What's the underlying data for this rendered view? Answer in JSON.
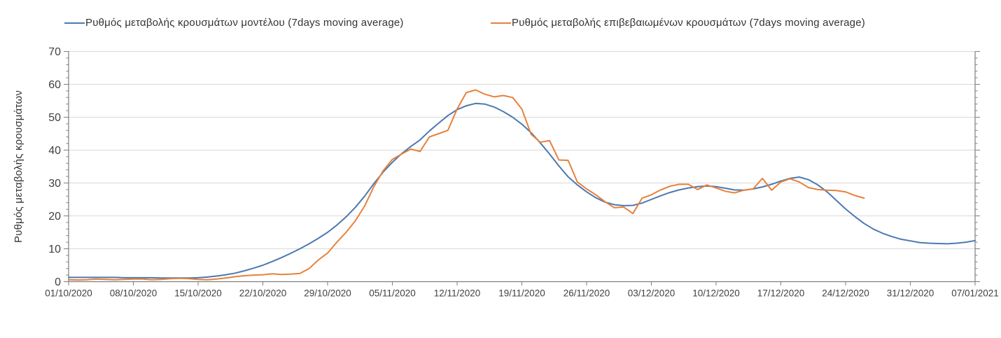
{
  "legend": {
    "model_label": "Ρυθμός μεταβολής κρουσμάτων μοντέλου (7days moving average)",
    "confirmed_label": "Ρυθμός μεταβολής επιβεβαιωμένων κρουσμάτων (7days moving average)"
  },
  "y_axis_title": "Ρυθμός μεταβολής κρουσμάτων",
  "colors": {
    "model_line": "#4c79b0",
    "confirmed_line": "#e7813c",
    "gridline": "#d9d9d9",
    "axis": "#7f7f7f",
    "tick_text": "#404040"
  },
  "chart_data": {
    "type": "line",
    "title": "",
    "xlabel": "",
    "ylabel": "Ρυθμός μεταβολής κρουσμάτων",
    "ylim": [
      0,
      70
    ],
    "y_ticks": [
      0,
      10,
      20,
      30,
      40,
      50,
      60,
      70
    ],
    "y_minor_tick_step": 2,
    "grid": "horizontal",
    "legend_position": "top",
    "x_tick_labels": [
      "01/10/2020",
      "08/10/2020",
      "15/10/2020",
      "22/10/2020",
      "29/10/2020",
      "05/11/2020",
      "12/11/2020",
      "19/11/2020",
      "26/11/2020",
      "03/12/2020",
      "10/12/2020",
      "17/12/2020",
      "24/12/2020",
      "31/12/2020",
      "07/01/2021"
    ],
    "x_tick_interval_days": 7,
    "x_range_days": [
      0,
      98
    ],
    "series": [
      {
        "name": "Ρυθμός μεταβολής κρουσμάτων μοντέλου (7days moving average)",
        "key": "model",
        "color": "#4c79b0",
        "start_day": 0,
        "values": [
          1.3,
          1.3,
          1.3,
          1.3,
          1.3,
          1.3,
          1.2,
          1.2,
          1.2,
          1.2,
          1.1,
          1.1,
          1.1,
          1.1,
          1.2,
          1.4,
          1.7,
          2.1,
          2.6,
          3.3,
          4.1,
          5.0,
          6.1,
          7.3,
          8.6,
          10.0,
          11.5,
          13.2,
          15.0,
          17.2,
          19.7,
          22.6,
          26.0,
          29.8,
          33.3,
          36.3,
          38.9,
          41.1,
          43.1,
          45.8,
          48.2,
          50.5,
          52.3,
          53.5,
          54.2,
          54.0,
          53.1,
          51.7,
          50.0,
          47.9,
          45.3,
          42.2,
          38.8,
          35.2,
          31.9,
          29.4,
          27.3,
          25.5,
          24.2,
          23.4,
          23.1,
          23.2,
          23.9,
          25.0,
          26.1,
          27.1,
          27.9,
          28.5,
          28.9,
          29.1,
          28.9,
          28.4,
          27.9,
          27.8,
          28.2,
          28.8,
          29.6,
          30.6,
          31.4,
          31.8,
          31.0,
          29.4,
          27.3,
          24.7,
          22.1,
          19.8,
          17.7,
          16.0,
          14.7,
          13.7,
          12.9,
          12.4,
          11.9,
          11.7,
          11.6,
          11.5,
          11.7,
          12.0,
          12.5
        ]
      },
      {
        "name": "Ρυθμός μεταβολής επιβεβαιωμένων κρουσμάτων (7days moving average)",
        "key": "confirmed",
        "color": "#e7813c",
        "start_day": 0,
        "values": [
          0.6,
          0.5,
          0.6,
          0.8,
          0.7,
          0.6,
          0.7,
          0.8,
          0.8,
          0.6,
          0.7,
          0.9,
          1.0,
          0.9,
          0.7,
          0.6,
          0.8,
          1.1,
          1.5,
          1.8,
          2.0,
          2.1,
          2.4,
          2.2,
          2.3,
          2.5,
          4.0,
          6.6,
          8.7,
          12.0,
          15.0,
          18.5,
          23.0,
          28.9,
          33.7,
          37.2,
          38.8,
          40.3,
          39.6,
          44.0,
          45.0,
          46.0,
          52.5,
          57.5,
          58.3,
          57.0,
          56.2,
          56.6,
          56.0,
          52.5,
          44.8,
          42.4,
          42.9,
          37.0,
          36.9,
          30.3,
          28.2,
          26.4,
          24.3,
          22.5,
          22.7,
          20.7,
          25.4,
          26.4,
          27.9,
          29.0,
          29.6,
          29.6,
          28.0,
          29.4,
          28.5,
          27.5,
          27.0,
          27.8,
          28.2,
          31.4,
          27.8,
          30.3,
          31.3,
          30.3,
          28.6,
          28.0,
          27.8,
          27.7,
          27.3,
          26.2,
          25.4
        ]
      }
    ]
  }
}
